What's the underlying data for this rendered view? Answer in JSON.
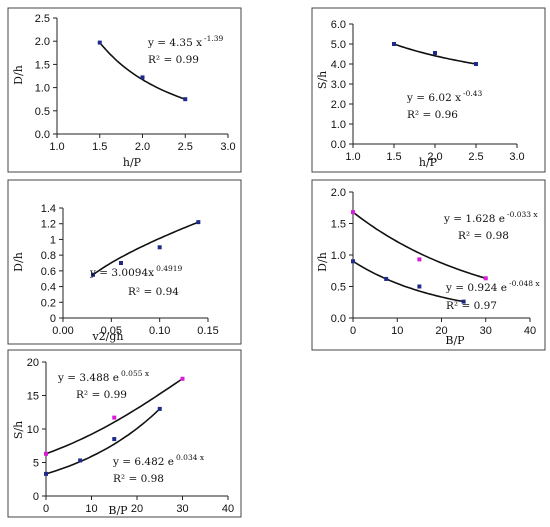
{
  "chart_data": [
    {
      "type": "scatter",
      "panel": "top-left",
      "xlabel": "h/P",
      "ylabel": "D/h",
      "xlim": [
        1.0,
        3.0
      ],
      "ylim": [
        0.0,
        2.5
      ],
      "xticks": [
        "1.0",
        "1.5",
        "2.0",
        "2.5",
        "3.0"
      ],
      "yticks": [
        "0.0",
        "0.5",
        "1.0",
        "1.5",
        "2.0",
        "2.5"
      ],
      "series": [
        {
          "points": [
            [
              1.5,
              1.97
            ],
            [
              2.0,
              1.22
            ],
            [
              2.5,
              0.75
            ]
          ],
          "color": "#1f2a8a",
          "fit": {
            "type": "power",
            "a": 4.35,
            "b": -1.39
          },
          "equation": "y = 4.35 x",
          "exponent": "-1.39",
          "r2": "R² = 0.99"
        }
      ]
    },
    {
      "type": "scatter",
      "panel": "top-right",
      "xlabel": "h/P",
      "ylabel": "S/h",
      "xlim": [
        1.0,
        3.0
      ],
      "ylim": [
        0.0,
        6.0
      ],
      "xticks": [
        "1.0",
        "1.5",
        "2.0",
        "2.5",
        "3.0"
      ],
      "yticks": [
        "0.0",
        "1.0",
        "2.0",
        "3.0",
        "4.0",
        "5.0",
        "6.0"
      ],
      "series": [
        {
          "points": [
            [
              1.5,
              5.0
            ],
            [
              2.0,
              4.55
            ],
            [
              2.5,
              4.0
            ]
          ],
          "color": "#1f2a8a",
          "fit": {
            "type": "power",
            "a": 6.02,
            "b": -0.43
          },
          "equation": "y = 6.02 x",
          "exponent": "-0.43",
          "r2": "R² = 0.96"
        }
      ]
    },
    {
      "type": "scatter",
      "panel": "middle-left",
      "xlabel": "v2/gh",
      "ylabel": "D/h",
      "xlim": [
        0.0,
        0.15
      ],
      "ylim": [
        0.0,
        1.4
      ],
      "xticks": [
        "0.00",
        "0.05",
        "0.10",
        "0.15"
      ],
      "yticks": [
        "0",
        "0.2",
        "0.4",
        "0.6",
        "0.8",
        "1",
        "1.2",
        "1.4"
      ],
      "series": [
        {
          "points": [
            [
              0.031,
              0.55
            ],
            [
              0.06,
              0.7
            ],
            [
              0.1,
              0.9
            ],
            [
              0.14,
              1.22
            ]
          ],
          "color": "#1f2a8a",
          "fit": {
            "type": "power",
            "a": 3.0094,
            "b": 0.4919
          },
          "equation": "y = 3.0094x",
          "exponent": "0.4919",
          "r2": "R² = 0.94"
        }
      ]
    },
    {
      "type": "scatter",
      "panel": "middle-right",
      "xlabel": "B/P",
      "ylabel": "D/h",
      "xlim": [
        0,
        40
      ],
      "ylim": [
        0.0,
        2.0
      ],
      "xticks": [
        "0",
        "10",
        "20",
        "30",
        "40"
      ],
      "yticks": [
        "0.0",
        "0.5",
        "1.0",
        "1.5",
        "2.0"
      ],
      "series": [
        {
          "points": [
            [
              0,
              1.68
            ],
            [
              15,
              0.93
            ],
            [
              30,
              0.63
            ]
          ],
          "color": "#d81bd8",
          "fit": {
            "type": "exp",
            "a": 1.628,
            "b": -0.033
          },
          "equation": "y = 1.628 e",
          "exponent": "-0.033 x",
          "r2": "R² = 0.98"
        },
        {
          "points": [
            [
              0,
              0.9
            ],
            [
              7.5,
              0.62
            ],
            [
              15,
              0.5
            ],
            [
              25,
              0.26
            ]
          ],
          "color": "#1f2a8a",
          "fit": {
            "type": "exp",
            "a": 0.924,
            "b": -0.048
          },
          "equation": "y = 0.924 e",
          "exponent": "-0.048 x",
          "r2": "R² = 0.97"
        }
      ]
    },
    {
      "type": "scatter",
      "panel": "bottom-left",
      "xlabel": "B/P",
      "ylabel": "S/h",
      "xlim": [
        0,
        40
      ],
      "ylim": [
        0,
        20
      ],
      "xticks": [
        "0",
        "10",
        "20",
        "30",
        "40"
      ],
      "yticks": [
        "0",
        "5",
        "10",
        "15",
        "20"
      ],
      "series": [
        {
          "points": [
            [
              0,
              6.3
            ],
            [
              15,
              11.7
            ],
            [
              30,
              17.5
            ]
          ],
          "color": "#d81bd8",
          "fit": {
            "type": "exp",
            "a": 3.488,
            "b": 0.055
          },
          "equation": "y = 3.488 e",
          "exponent": "0.055 x",
          "r2": "R² = 0.99"
        },
        {
          "points": [
            [
              0,
              3.3
            ],
            [
              7.5,
              5.3
            ],
            [
              15,
              8.5
            ],
            [
              25,
              13.0
            ]
          ],
          "color": "#1f2a8a",
          "fit": {
            "type": "exp",
            "a": 6.482,
            "b": 0.034
          },
          "equation": "y = 6.482 e",
          "exponent": "0.034 x",
          "r2": "R² = 0.98"
        }
      ]
    }
  ]
}
